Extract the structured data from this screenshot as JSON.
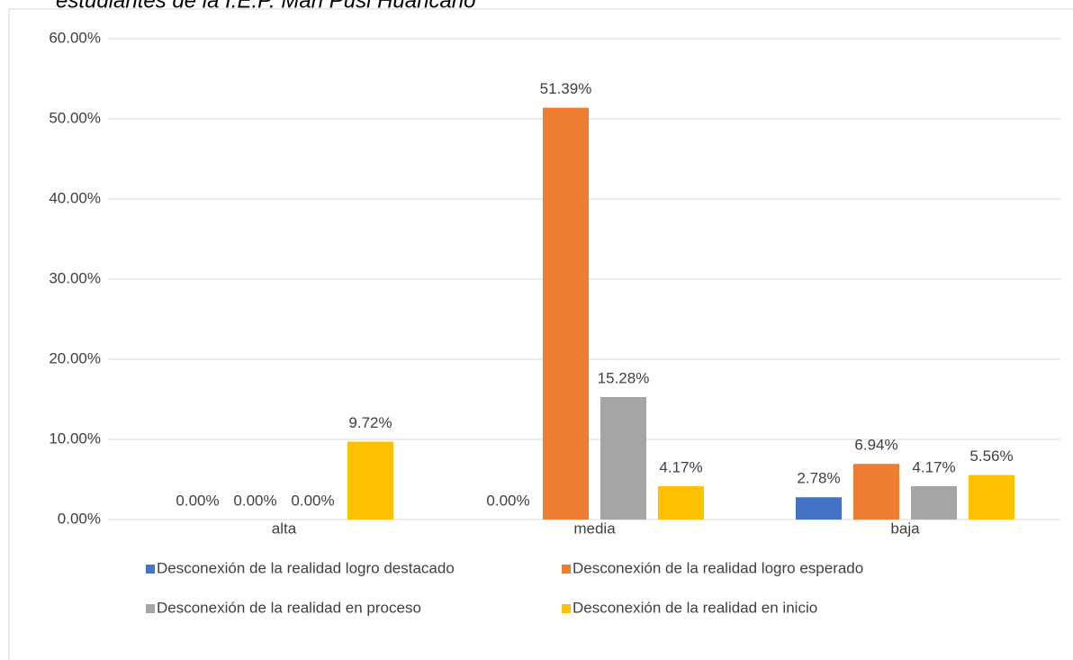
{
  "chart_data": {
    "type": "bar",
    "title": "estudiantes de la I.E.P. Mari Pusi Huancano",
    "categories": [
      "alta",
      "media",
      "baja"
    ],
    "series": [
      {
        "name": "Desconexión de la realidad logro destacado",
        "color": "#4472c4",
        "values": [
          0,
          0,
          2.78
        ],
        "value_labels": [
          "0.00%",
          "0.00%",
          "2.78%"
        ]
      },
      {
        "name": "Desconexión de la realidad logro esperado",
        "color": "#ed7d31",
        "values": [
          0,
          51.39,
          6.94
        ],
        "value_labels": [
          "0.00%",
          "51.39%",
          "6.94%"
        ]
      },
      {
        "name": "Desconexión de la realidad en proceso",
        "color": "#a5a5a5",
        "values": [
          0,
          15.28,
          4.17
        ],
        "value_labels": [
          "0.00%",
          "15.28%",
          "4.17%"
        ]
      },
      {
        "name": "Desconexión de la realidad en inicio",
        "color": "#ffc000",
        "values": [
          9.72,
          4.17,
          5.56
        ],
        "value_labels": [
          "9.72%",
          "4.17%",
          "5.56%"
        ]
      }
    ],
    "ylim": [
      0,
      60
    ],
    "yticks": [
      {
        "value": 0,
        "label": "0.00%"
      },
      {
        "value": 10,
        "label": "10.00%"
      },
      {
        "value": 20,
        "label": "20.00%"
      },
      {
        "value": 30,
        "label": "30.00%"
      },
      {
        "value": 40,
        "label": "40.00%"
      },
      {
        "value": 50,
        "label": "50.00%"
      },
      {
        "value": 60,
        "label": "60.00%"
      }
    ],
    "grid": true
  }
}
